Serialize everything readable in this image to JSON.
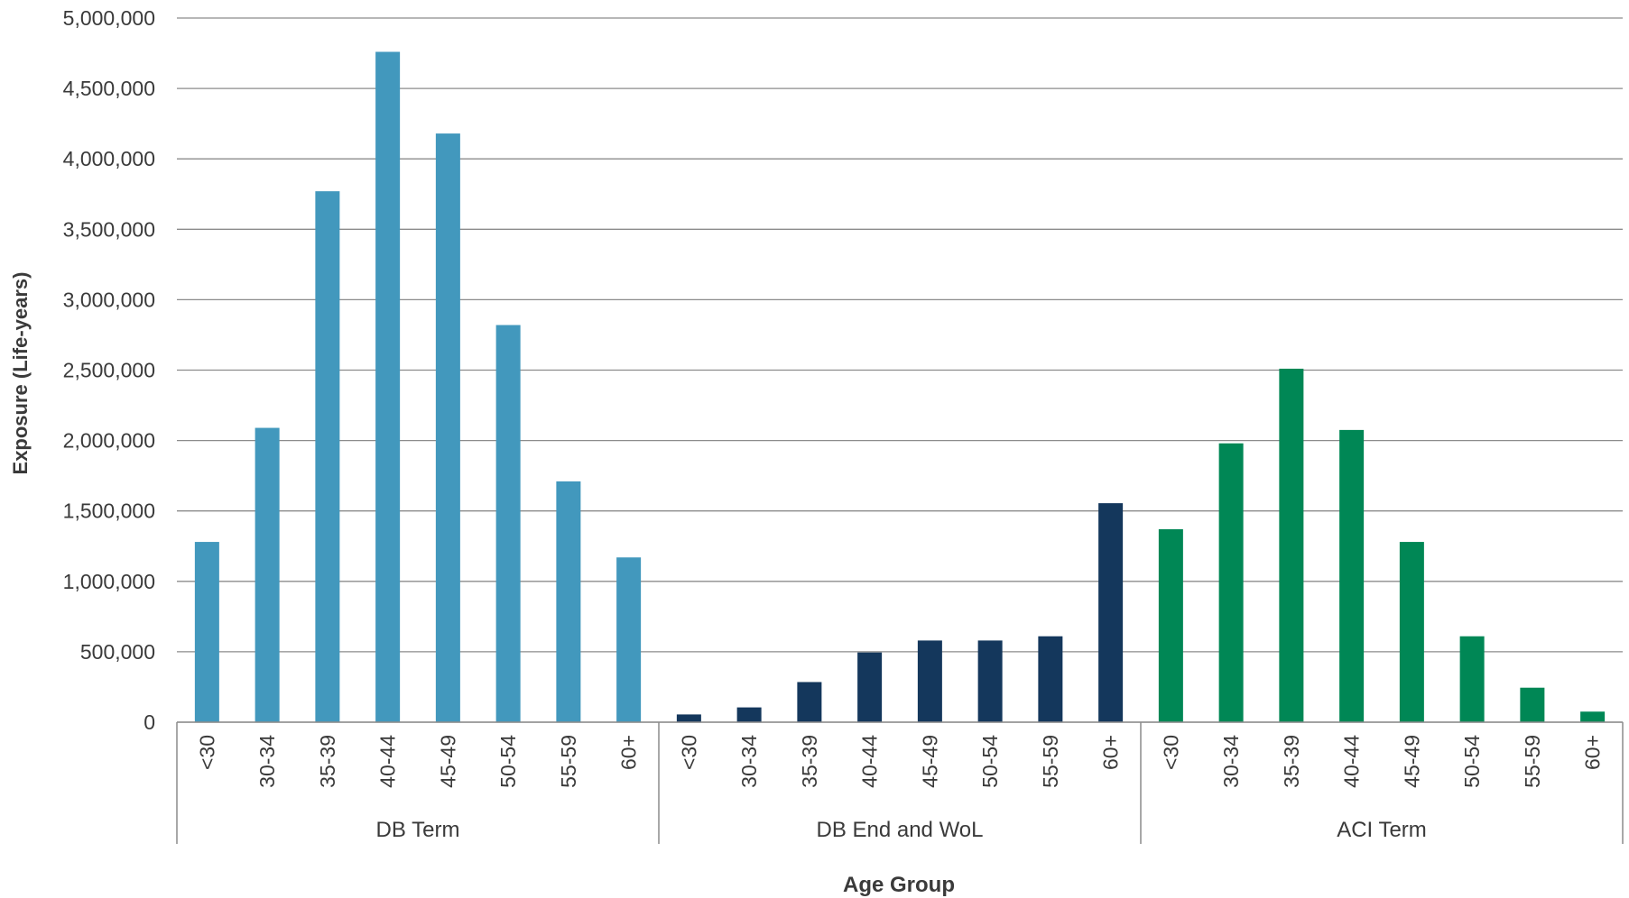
{
  "chart_data": {
    "type": "bar",
    "title": "",
    "ylabel": "Exposure (Life-years)",
    "xlabel": "Age Group",
    "ylim": [
      0,
      5000000
    ],
    "yticks": [
      0,
      500000,
      1000000,
      1500000,
      2000000,
      2500000,
      3000000,
      3500000,
      4000000,
      4500000,
      5000000
    ],
    "ytick_labels": [
      "0",
      "500,000",
      "1,000,000",
      "1,500,000",
      "2,000,000",
      "2,500,000",
      "3,000,000",
      "3,500,000",
      "4,000,000",
      "4,500,000",
      "5,000,000"
    ],
    "grid": true,
    "legend": "none",
    "categories": [
      "<30",
      "30-34",
      "35-39",
      "40-44",
      "45-49",
      "50-54",
      "55-59",
      "60+"
    ],
    "groups": [
      {
        "name": "DB Term",
        "color": "#4298bd",
        "values": [
          1280000,
          2090000,
          3770000,
          4760000,
          4180000,
          2820000,
          1710000,
          1170000
        ]
      },
      {
        "name": "DB End and WoL",
        "color": "#14375c",
        "values": [
          55000,
          105000,
          285000,
          495000,
          580000,
          580000,
          610000,
          1555000
        ]
      },
      {
        "name": "ACI Term",
        "color": "#008755",
        "values": [
          1370000,
          1980000,
          2510000,
          2075000,
          1280000,
          610000,
          245000,
          75000
        ]
      }
    ]
  }
}
